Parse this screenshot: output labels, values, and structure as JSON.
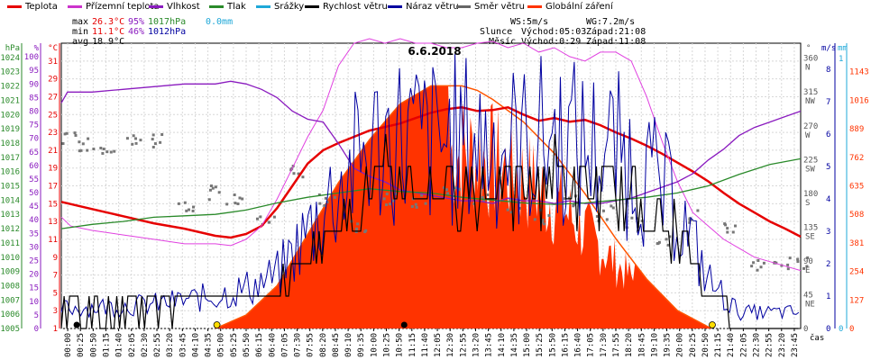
{
  "legend": [
    {
      "label": "Teplota",
      "color": "#e60000"
    },
    {
      "label": "Přízemní teplota",
      "color": "#cc33cc"
    },
    {
      "label": "Vlhkost",
      "color": "#8a1bbf"
    },
    {
      "label": "Tlak",
      "color": "#2a8a2a"
    },
    {
      "label": "Srážky",
      "color": "#1fa8d8"
    },
    {
      "label": "Rychlost větru",
      "color": "#000000"
    },
    {
      "label": "Náraz větru",
      "color": "#0000a0"
    },
    {
      "label": "Směr větru",
      "color": "#666666"
    },
    {
      "label": "Globální záření",
      "color": "#ff3300"
    }
  ],
  "stats": {
    "max_label": "max",
    "max_temp": "26.3°C",
    "max_hum": "95%",
    "max_press": "1017hPa",
    "max_rain": "0.0mm",
    "min_label": "min",
    "min_temp": "11.1°C",
    "min_hum": "46%",
    "min_press": "1012hPa",
    "avg_label": "avg",
    "avg_temp": "18.9°C"
  },
  "wind_info": {
    "ws": "WS:5m/s",
    "wg": "WG:7.2m/s"
  },
  "sun_info": {
    "label": "Slunce",
    "rise": "Východ:05:03",
    "set": "Západ:21:08"
  },
  "moon_info": {
    "label": "Měsíc",
    "rise": "Východ:0:29",
    "set": "Západ:11:08"
  },
  "time_label": "čas",
  "colors": {
    "temp": "#e60000",
    "ground": "#e040e0",
    "hum": "#8a1bbf",
    "press": "#2a8a2a",
    "rain": "#1fa8d8",
    "wind": "#000000",
    "gust": "#0000a0",
    "dir": "#777777",
    "solar": "#ff3300",
    "solar_line": "#ff5500"
  },
  "chart_data": {
    "type": "line",
    "title": "6.6.2018",
    "x_ticks": [
      "00:00",
      "00:25",
      "00:50",
      "01:15",
      "01:40",
      "02:05",
      "02:30",
      "02:55",
      "03:20",
      "03:45",
      "04:10",
      "04:35",
      "05:00",
      "05:25",
      "05:50",
      "06:15",
      "06:40",
      "07:05",
      "07:30",
      "07:55",
      "08:20",
      "08:45",
      "09:10",
      "09:35",
      "10:00",
      "10:25",
      "10:50",
      "11:15",
      "11:40",
      "12:05",
      "12:30",
      "12:55",
      "13:20",
      "13:45",
      "14:10",
      "14:35",
      "15:00",
      "15:25",
      "15:50",
      "16:15",
      "16:40",
      "17:05",
      "17:30",
      "17:55",
      "18:20",
      "18:45",
      "19:10",
      "19:35",
      "20:00",
      "20:25",
      "20:50",
      "21:15",
      "21:40",
      "22:05",
      "22:30",
      "22:55",
      "23:20",
      "23:45"
    ],
    "axes": {
      "pressure": {
        "label": "hPa",
        "ticks": [
          "1005",
          "1006",
          "1007",
          "1008",
          "1009",
          "1010",
          "1011",
          "1012",
          "1013",
          "1014",
          "1015",
          "1016",
          "1017",
          "1018",
          "1019",
          "1020",
          "1021",
          "1022",
          "1023",
          "1024"
        ],
        "range": [
          1005,
          1025
        ]
      },
      "humidity": {
        "label": "%",
        "ticks": [
          "0",
          "5",
          "10",
          "15",
          "20",
          "25",
          "30",
          "35",
          "40",
          "45",
          "50",
          "55",
          "60",
          "65",
          "70",
          "75",
          "80",
          "85",
          "90",
          "95",
          "100"
        ],
        "range": [
          0,
          105
        ]
      },
      "temperature": {
        "label": "°C",
        "ticks": [
          "1",
          "3",
          "5",
          "7",
          "9",
          "11",
          "13",
          "15",
          "17",
          "19",
          "21",
          "23",
          "25",
          "27",
          "29",
          "31"
        ],
        "range": [
          1,
          33
        ]
      },
      "direction": {
        "label": "°",
        "ticks": [
          "0",
          "45\nNE",
          "90\nE",
          "135\nSE",
          "180\nS",
          "225\nSW",
          "270\nW",
          "315\nNW",
          "360\nN"
        ],
        "range": [
          0,
          380
        ]
      },
      "wind": {
        "label": "m/s",
        "ticks": [
          "0",
          "1",
          "2",
          "3",
          "4",
          "5",
          "6",
          "7",
          "8"
        ],
        "range": [
          0,
          8.8
        ]
      },
      "rain": {
        "label": "mm",
        "ticks": [
          "0",
          "1"
        ],
        "range": [
          0,
          1
        ]
      },
      "solar": {
        "ticks": [
          "0",
          "127",
          "254",
          "381",
          "508",
          "635",
          "762",
          "889",
          "1016",
          "1143"
        ],
        "range": [
          0,
          1270
        ]
      }
    },
    "series": [
      {
        "name": "Teplota",
        "key": "temp",
        "x": [
          0,
          1,
          2,
          3,
          4,
          5,
          5.5,
          6,
          6.5,
          7,
          7.5,
          8,
          8.5,
          9,
          9.5,
          10,
          10.5,
          11,
          11.5,
          12,
          12.5,
          13,
          13.5,
          14,
          14.5,
          15,
          15.5,
          16,
          16.5,
          17,
          17.5,
          18,
          18.5,
          19,
          19.5,
          20,
          20.5,
          21,
          21.5,
          22,
          22.5,
          23,
          23.5,
          24
        ],
        "y": [
          15.2,
          14.4,
          13.6,
          12.8,
          12.2,
          11.4,
          11.2,
          11.6,
          12.5,
          14.5,
          17.0,
          19.5,
          21.0,
          21.8,
          22.5,
          23.2,
          23.6,
          24.0,
          24.6,
          25.2,
          25.6,
          25.8,
          25.4,
          25.5,
          25.8,
          25.0,
          24.3,
          24.6,
          24.2,
          24.4,
          23.8,
          23.0,
          22.3,
          21.5,
          20.6,
          19.6,
          18.6,
          17.5,
          16.2,
          15.0,
          14.0,
          13.0,
          12.2,
          11.3
        ]
      },
      {
        "name": "Přízemní teplota",
        "key": "ground",
        "x": [
          0,
          0.3,
          1,
          2,
          3,
          4,
          5,
          5.5,
          6,
          6.5,
          7,
          7.5,
          8,
          8.5,
          9,
          9.5,
          10,
          10.5,
          11,
          11.5,
          12,
          12.5,
          13,
          13.5,
          14,
          14.5,
          15,
          15.5,
          16,
          16.5,
          17,
          17.5,
          18,
          18.5,
          19,
          19.5,
          20,
          20.5,
          21,
          21.5,
          22,
          22.5,
          23,
          23.5,
          24
        ],
        "y": [
          13.5,
          12.5,
          12.0,
          11.5,
          11.0,
          10.5,
          10.5,
          10.3,
          11.0,
          12.5,
          15.5,
          19.0,
          22.5,
          25.5,
          30.5,
          33.0,
          33.5,
          33.0,
          33.5,
          33.0,
          33.0,
          32.5,
          32.5,
          33.0,
          33.2,
          32.5,
          33.0,
          32.0,
          32.5,
          31.5,
          31.0,
          32.0,
          32.0,
          31.0,
          27.0,
          22.0,
          17.5,
          14.0,
          12.5,
          11.0,
          10.0,
          9.0,
          8.5,
          8.0,
          7.5
        ]
      },
      {
        "name": "Vlhkost",
        "key": "hum",
        "x": [
          0,
          0.2,
          1,
          2,
          3,
          4,
          5,
          5.5,
          6,
          6.5,
          7,
          7.5,
          8,
          8.5,
          9,
          9.5,
          10,
          10.5,
          11,
          11.5,
          12,
          12.5,
          13,
          13.5,
          14,
          14.5,
          15,
          15.5,
          16,
          16.5,
          17,
          17.5,
          18,
          18.5,
          19,
          19.5,
          20,
          20.5,
          21,
          21.5,
          22,
          22.5,
          23,
          23.5,
          24
        ],
        "y": [
          83,
          87,
          87,
          88,
          89,
          90,
          90,
          91,
          90,
          88,
          85,
          80,
          77,
          76,
          68,
          59,
          56,
          54,
          51,
          50,
          49,
          48,
          47,
          47,
          46,
          48,
          47,
          47,
          46,
          47,
          46,
          46,
          47,
          48,
          50,
          52,
          54,
          57,
          62,
          66,
          71,
          74,
          76,
          78,
          80
        ]
      },
      {
        "name": "Tlak",
        "key": "press",
        "x": [
          0,
          1,
          2,
          3,
          4,
          5,
          6,
          7,
          8,
          9,
          10,
          11,
          12,
          13,
          14,
          15,
          16,
          17,
          18,
          19,
          20,
          21,
          22,
          23,
          24
        ],
        "y": [
          1012.0,
          1012.3,
          1012.5,
          1012.8,
          1012.9,
          1013.0,
          1013.3,
          1013.8,
          1014.2,
          1014.5,
          1014.8,
          1014.6,
          1014.5,
          1014.2,
          1014.0,
          1013.8,
          1013.7,
          1013.8,
          1014.0,
          1014.2,
          1014.5,
          1015.0,
          1015.8,
          1016.5,
          1016.9
        ]
      },
      {
        "name": "Globální záření",
        "key": "solar",
        "x": [
          5.0,
          6,
          7,
          8,
          9,
          10,
          11,
          12,
          12.5,
          13,
          13.5,
          14,
          15,
          16,
          17,
          18,
          19,
          20,
          21.1
        ],
        "y": [
          0,
          60,
          190,
          420,
          650,
          840,
          1000,
          1080,
          1080,
          1080,
          1060,
          1020,
          920,
          780,
          600,
          400,
          220,
          80,
          0
        ]
      }
    ],
    "wind_speed_profile": {
      "x": [
        0,
        3,
        5,
        6,
        7,
        8,
        9,
        10,
        11,
        12,
        13,
        14,
        15,
        16,
        17,
        18,
        19,
        20,
        21,
        22,
        24
      ],
      "y": [
        0.5,
        0.6,
        0.8,
        1.0,
        1.3,
        2.4,
        3.5,
        4.5,
        4.8,
        4.6,
        4.7,
        4.6,
        4.5,
        4.8,
        4.5,
        4.4,
        3.8,
        3.0,
        1.2,
        0.4,
        0.4
      ]
    },
    "wind_direction_points": {
      "x": [
        0.3,
        0.8,
        1.5,
        2.4,
        3.2,
        4.0,
        4.8,
        5.6,
        6.6,
        7.6,
        8.6,
        9.6,
        10.6,
        11.6,
        12.6,
        13.6,
        14.6,
        15.6,
        16.6,
        17.6,
        18.6,
        19.6,
        20.6,
        21.6,
        22.6,
        23.4,
        23.9
      ],
      "y": [
        255,
        248,
        245,
        250,
        252,
        160,
        182,
        170,
        150,
        210,
        175,
        140,
        172,
        170,
        185,
        175,
        165,
        150,
        175,
        155,
        140,
        120,
        150,
        135,
        85,
        90,
        90
      ]
    }
  }
}
